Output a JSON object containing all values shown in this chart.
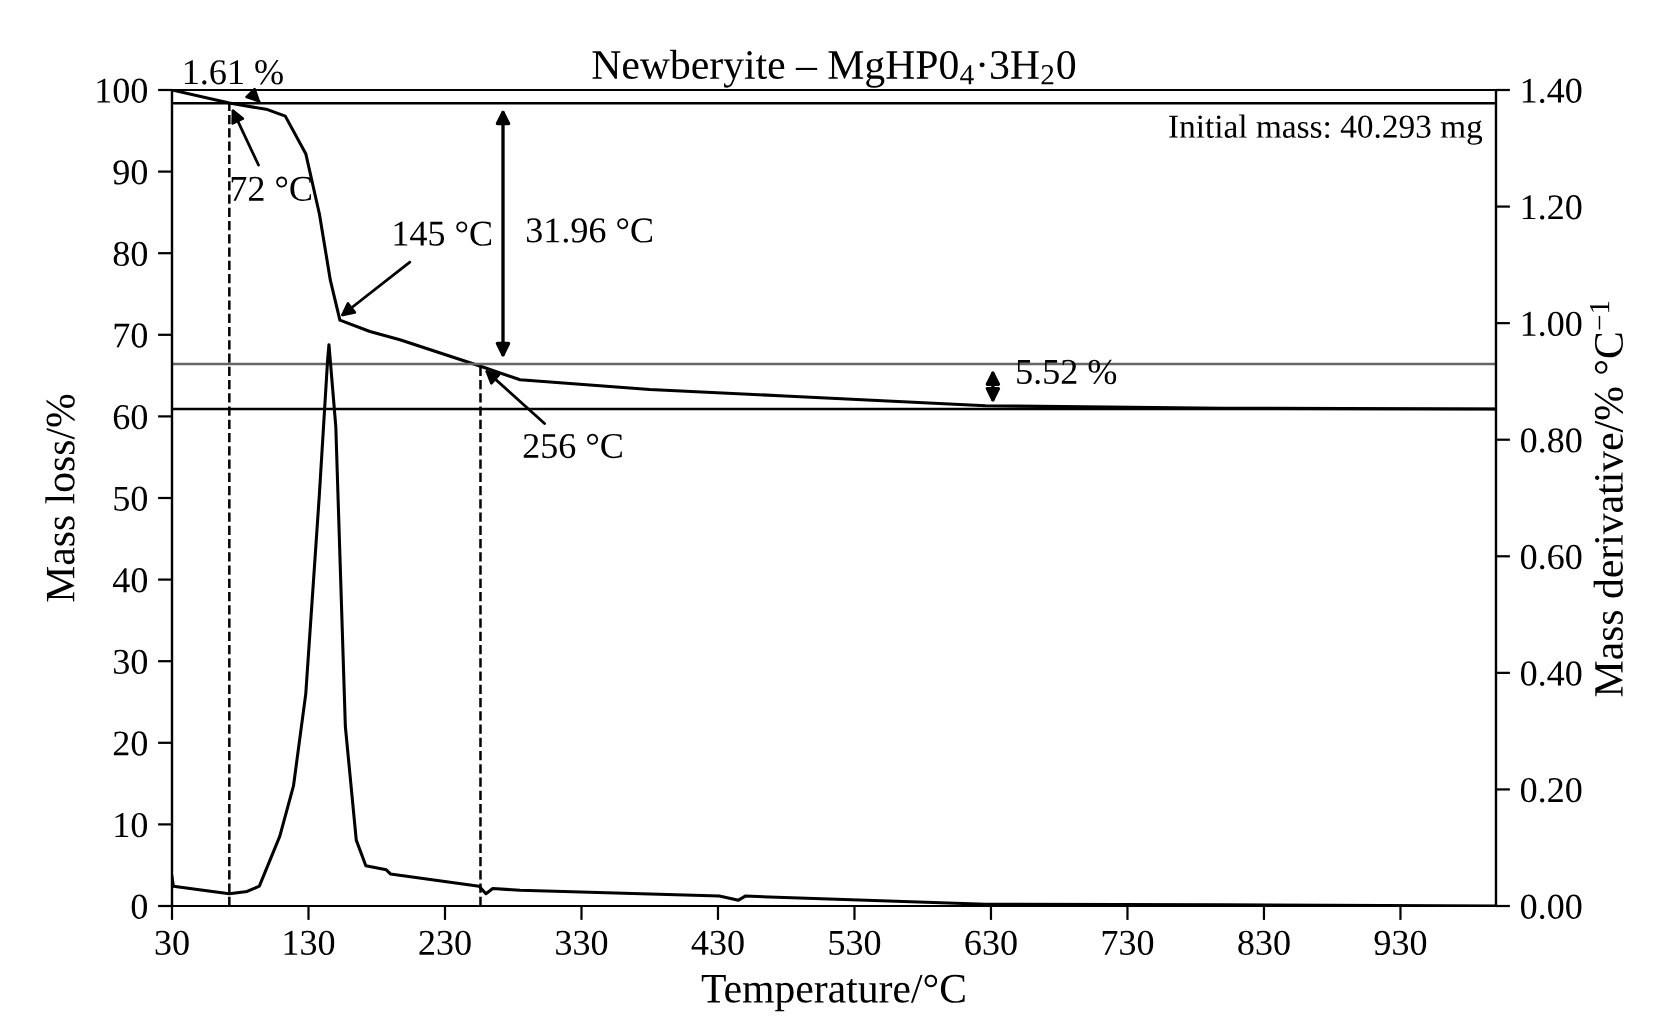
{
  "chart_data": {
    "type": "line",
    "title": "Newberyite – MgHP0$_{4}$·3H$_{2}$0",
    "xlabel": "Temperature/°C",
    "ylabel": "Mass loss/%",
    "y2label": "Mass derivative/% °C$^{−1}$",
    "xlim": [
      30,
      1000
    ],
    "xticks": [
      30,
      130,
      230,
      330,
      430,
      530,
      630,
      730,
      830,
      930
    ],
    "ylim": [
      0,
      100
    ],
    "yticks": [
      0,
      10,
      20,
      30,
      40,
      50,
      60,
      70,
      80,
      90,
      100
    ],
    "y2lim": [
      0,
      1.4
    ],
    "y2ticks": [
      {
        "value": 0,
        "label": "0.00"
      },
      {
        "value": 0.2,
        "label": "0.20"
      },
      {
        "value": 0.4,
        "label": "0.40"
      },
      {
        "value": 0.6,
        "label": "0.60"
      },
      {
        "value": 0.8,
        "label": "0.80"
      },
      {
        "value": 1.0,
        "label": "1.00"
      },
      {
        "value": 1.2,
        "label": "1.20"
      },
      {
        "value": 1.4,
        "label": "1.40"
      }
    ],
    "series": [
      {
        "color": "#000000",
        "x": [
          30,
          72,
          100,
          113,
          128,
          138,
          146,
          153,
          175,
          197,
          255,
          285,
          380,
          479,
          626,
          800,
          1000
        ],
        "values": [
          100,
          98.4,
          97.6,
          96.8,
          92.2,
          84.8,
          76.7,
          71.8,
          70.4,
          69.4,
          66.2,
          64.5,
          63.3,
          62.5,
          61.3,
          61.0,
          60.9
        ]
      },
      {
        "color": "#000000",
        "axis": "y2",
        "x": [
          30,
          31,
          50,
          72,
          85,
          94,
          109,
          119,
          128,
          138,
          144,
          145,
          150,
          157,
          165,
          172,
          187,
          190,
          255,
          260,
          265,
          285,
          431,
          445,
          450,
          626,
          800,
          1000
        ],
        "values": [
          0.05,
          0.034,
          0.028,
          0.021,
          0.025,
          0.034,
          0.12,
          0.206,
          0.364,
          0.707,
          0.937,
          0.963,
          0.823,
          0.308,
          0.113,
          0.069,
          0.062,
          0.055,
          0.034,
          0.021,
          0.03,
          0.027,
          0.017,
          0.01,
          0.017,
          0.003,
          0.002,
          0.0
        ]
      }
    ],
    "ref_lines": [
      {
        "axis": "x",
        "value": 72,
        "line_style": "dashed",
        "color": "#000000"
      },
      {
        "axis": "x",
        "value": 256,
        "line_style": "dashed",
        "color": "#000000"
      },
      {
        "axis": "y",
        "value": 98.39,
        "color": "#000000",
        "line_style": "solid"
      },
      {
        "axis": "y",
        "value": 66.43,
        "color": "#666666",
        "line_style": "solid"
      },
      {
        "axis": "y",
        "value": 60.91,
        "color": "#000000",
        "line_style": "solid"
      }
    ],
    "annotations": [
      {
        "text": "1.61 %",
        "x": 95,
        "y": 98.39
      },
      {
        "text": "72 °C",
        "x": 72,
        "y": 98.4
      },
      {
        "text": "145 °C",
        "x": 150,
        "y": 71.8
      },
      "31.96 °C",
      {
        "text": "256 °C",
        "x": 256,
        "y": 66.2
      },
      "5.52 %",
      "Initial mass: 40.293 mg"
    ],
    "grid": false,
    "marker": "none",
    "line_style": "solid"
  }
}
